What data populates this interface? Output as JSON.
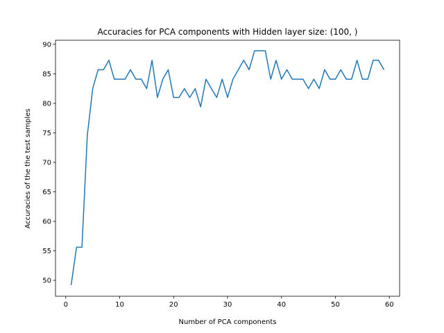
{
  "chart_data": {
    "type": "line",
    "title": "Accuracies for PCA components with Hidden layer size: (100, )",
    "xlabel": "Number of PCA components",
    "ylabel": "Accuracies of the the test samples",
    "xlim": [
      -1.9,
      61.9
    ],
    "ylim": [
      47.3,
      90.7
    ],
    "xticks": [
      0,
      10,
      20,
      30,
      40,
      50,
      60
    ],
    "yticks": [
      50,
      55,
      60,
      65,
      70,
      75,
      80,
      85,
      90
    ],
    "grid": false,
    "line_color": "#1f77b4",
    "series": [
      {
        "x": [
          1,
          2,
          3,
          4,
          5,
          6,
          7,
          8,
          9,
          10,
          11,
          12,
          13,
          14,
          15,
          16,
          17,
          18,
          19,
          20,
          21,
          22,
          23,
          24,
          25,
          26,
          27,
          28,
          29,
          30,
          31,
          32,
          33,
          34,
          35,
          36,
          37,
          38,
          39,
          40,
          41,
          42,
          43,
          44,
          45,
          46,
          47,
          48,
          49,
          50,
          51,
          52,
          53,
          54,
          55,
          56,
          57,
          58,
          59
        ],
        "y": [
          49.2,
          55.6,
          55.6,
          74.6,
          82.5,
          85.7,
          85.7,
          87.3,
          84.1,
          84.1,
          84.1,
          85.7,
          84.1,
          84.1,
          82.5,
          87.3,
          81.0,
          84.1,
          85.7,
          81.0,
          81.0,
          82.5,
          81.0,
          82.5,
          79.4,
          84.1,
          82.5,
          81.0,
          84.1,
          81.0,
          84.1,
          85.7,
          87.3,
          85.7,
          88.9,
          88.9,
          88.9,
          84.1,
          87.3,
          84.1,
          85.7,
          84.1,
          84.1,
          84.1,
          82.5,
          84.1,
          82.5,
          85.7,
          84.1,
          84.1,
          85.7,
          84.1,
          84.1,
          87.3,
          84.1,
          84.1,
          87.3,
          87.3,
          85.7
        ]
      }
    ]
  }
}
